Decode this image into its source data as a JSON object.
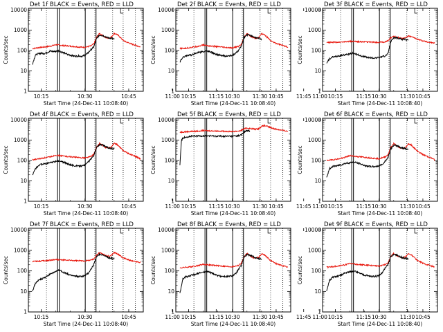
{
  "chart_data": {
    "type": "line",
    "x_tick_labels": [
      "10:15",
      "10:30",
      "10:45",
      "11:00",
      "11:15",
      "11:30",
      "11:45"
    ],
    "x_range_minutes_after_1000": [
      10.6,
      50
    ],
    "y_tick_labels": [
      "1",
      "10",
      "100",
      "1000",
      "10000"
    ],
    "y_range": [
      1,
      12000
    ],
    "y_scale": "log",
    "ylabel": "Counts/sec",
    "xlabel": "Start Time (24-Dec-11 10:08:40)",
    "dotted_vertical_lines_minutes": [
      16.8,
      33.4,
      39.5,
      43.1,
      47.3
    ],
    "solid_vertical_lines_minutes": [
      20.6,
      21.2,
      30.1,
      33.8
    ],
    "corner_marker_minutes": 42.2,
    "series_colors": {
      "events": "#000000",
      "lld": "#e8140a"
    },
    "panels": [
      {
        "title": "Det 1f BLACK = Events, RED = LLD",
        "events": {
          "x": [
            12.0,
            13,
            14,
            15,
            16,
            17,
            18,
            19,
            20,
            21,
            22,
            23,
            24,
            25,
            26,
            27,
            28,
            29,
            30,
            31,
            32,
            33,
            34,
            35,
            36,
            37,
            38,
            39,
            40
          ],
          "y": [
            22,
            60,
            70,
            75,
            72,
            80,
            95,
            90,
            92,
            100,
            85,
            75,
            65,
            60,
            55,
            53,
            55,
            52,
            60,
            75,
            110,
            150,
            400,
            580,
            560,
            480,
            420,
            410,
            360
          ]
        },
        "lld": {
          "x": [
            12,
            14,
            16,
            18,
            20,
            22,
            24,
            26,
            28,
            30,
            32,
            33,
            34,
            35,
            36,
            37,
            38,
            39,
            40,
            41,
            42,
            43,
            44,
            45,
            46,
            47,
            48,
            49
          ],
          "y": [
            125,
            140,
            150,
            165,
            195,
            180,
            170,
            160,
            150,
            145,
            170,
            210,
            460,
            700,
            560,
            440,
            410,
            450,
            700,
            630,
            460,
            330,
            270,
            240,
            210,
            190,
            170,
            150
          ]
        }
      },
      {
        "title": "Det 2f BLACK = Events, RED = LLD",
        "events": {
          "x": [
            12.0,
            13,
            14,
            15,
            16,
            17,
            18,
            19,
            20,
            21,
            22,
            23,
            24,
            25,
            26,
            27,
            28,
            29,
            30,
            31,
            32,
            33,
            34,
            35,
            36,
            37,
            38,
            39,
            40
          ],
          "y": [
            28,
            45,
            55,
            60,
            62,
            70,
            80,
            85,
            88,
            95,
            90,
            80,
            70,
            62,
            58,
            55,
            53,
            55,
            58,
            70,
            100,
            160,
            420,
            590,
            580,
            500,
            430,
            400,
            360
          ]
        },
        "lld": {
          "x": [
            12,
            14,
            16,
            18,
            20,
            22,
            24,
            26,
            28,
            30,
            32,
            33,
            34,
            35,
            36,
            37,
            38,
            39,
            40,
            41,
            42,
            43,
            44,
            45,
            46,
            47,
            48,
            49
          ],
          "y": [
            125,
            130,
            145,
            160,
            190,
            170,
            160,
            150,
            140,
            135,
            160,
            200,
            450,
            680,
            540,
            420,
            400,
            440,
            680,
            600,
            440,
            320,
            260,
            230,
            205,
            185,
            165,
            150
          ]
        }
      },
      {
        "title": "Det 3f BLACK = Events, RED = LLD",
        "events": {
          "x": [
            12.0,
            13,
            14,
            15,
            16,
            17,
            18,
            19,
            20,
            21,
            22,
            23,
            24,
            25,
            26,
            27,
            28,
            29,
            30,
            31,
            32,
            33,
            34,
            35,
            36,
            37,
            38,
            39,
            40
          ],
          "y": [
            25,
            40,
            48,
            50,
            55,
            58,
            62,
            65,
            68,
            75,
            70,
            60,
            55,
            50,
            46,
            44,
            43,
            44,
            45,
            50,
            55,
            70,
            280,
            440,
            430,
            380,
            360,
            350,
            320
          ]
        },
        "lld": {
          "x": [
            12,
            14,
            16,
            18,
            20,
            22,
            24,
            26,
            28,
            30,
            32,
            33,
            34,
            35,
            36,
            37,
            38,
            39,
            40,
            41,
            42,
            43,
            44,
            45,
            46,
            47,
            48,
            49
          ],
          "y": [
            250,
            255,
            260,
            270,
            285,
            280,
            270,
            265,
            260,
            255,
            265,
            300,
            430,
            520,
            460,
            420,
            400,
            430,
            520,
            480,
            420,
            370,
            330,
            300,
            280,
            260,
            245,
            230
          ]
        }
      },
      {
        "title": "Det 4f BLACK = Events, RED = LLD",
        "events": {
          "x": [
            12.0,
            13,
            14,
            15,
            16,
            17,
            18,
            19,
            20,
            21,
            22,
            23,
            24,
            25,
            26,
            27,
            28,
            29,
            30,
            31,
            32,
            33,
            34,
            35,
            36,
            37,
            38,
            39,
            40
          ],
          "y": [
            20,
            40,
            55,
            65,
            68,
            72,
            80,
            85,
            88,
            95,
            90,
            80,
            70,
            62,
            58,
            55,
            53,
            55,
            60,
            80,
            120,
            180,
            450,
            600,
            590,
            500,
            430,
            400,
            380
          ]
        },
        "lld": {
          "x": [
            12,
            14,
            16,
            18,
            20,
            22,
            24,
            26,
            28,
            30,
            32,
            33,
            34,
            35,
            36,
            37,
            38,
            39,
            40,
            41,
            42,
            43,
            44,
            45,
            46,
            47,
            48,
            49
          ],
          "y": [
            110,
            120,
            135,
            150,
            185,
            170,
            160,
            150,
            140,
            135,
            160,
            200,
            460,
            700,
            560,
            440,
            410,
            450,
            700,
            620,
            450,
            320,
            260,
            220,
            190,
            165,
            145,
            120
          ]
        }
      },
      {
        "title": "Det 5f BLACK = Events, RED = LLD",
        "events": {
          "x": [
            12.0,
            12.5,
            13,
            14,
            16,
            18,
            20,
            22,
            24,
            26,
            28,
            30,
            32,
            33,
            34,
            35,
            36
          ],
          "y": [
            60,
            900,
            1300,
            1450,
            1550,
            1600,
            1650,
            1630,
            1600,
            1580,
            1560,
            1580,
            1650,
            1800,
            2500,
            3000,
            2800
          ]
        },
        "lld": {
          "x": [
            12,
            14,
            16,
            18,
            20,
            22,
            24,
            26,
            28,
            30,
            32,
            33,
            34,
            35,
            36,
            37,
            38,
            39,
            40,
            41,
            42,
            43,
            44,
            45,
            46,
            47,
            48,
            49
          ],
          "y": [
            2500,
            2600,
            2700,
            2800,
            3000,
            2900,
            2850,
            2800,
            2750,
            2700,
            2800,
            3000,
            3600,
            4000,
            3800,
            3600,
            3500,
            3700,
            4800,
            5200,
            4800,
            4200,
            3800,
            3500,
            3300,
            3100,
            2900,
            2700
          ]
        }
      },
      {
        "title": "Det 6f BLACK = Events, RED = LLD",
        "events": {
          "x": [
            12.0,
            13,
            14,
            15,
            16,
            17,
            18,
            19,
            20,
            21,
            22,
            23,
            24,
            25,
            26,
            27,
            28,
            29,
            30,
            31,
            32,
            33,
            34,
            35,
            36,
            37,
            38,
            39,
            40
          ],
          "y": [
            15,
            40,
            50,
            55,
            58,
            62,
            70,
            75,
            78,
            85,
            80,
            72,
            65,
            58,
            54,
            52,
            50,
            52,
            55,
            65,
            90,
            140,
            380,
            560,
            550,
            470,
            410,
            390,
            350
          ]
        },
        "lld": {
          "x": [
            12,
            14,
            16,
            18,
            20,
            22,
            24,
            26,
            28,
            30,
            32,
            33,
            34,
            35,
            36,
            37,
            38,
            39,
            40,
            41,
            42,
            43,
            44,
            45,
            46,
            47,
            48,
            49
          ],
          "y": [
            100,
            110,
            120,
            140,
            175,
            160,
            150,
            140,
            130,
            125,
            150,
            190,
            440,
            680,
            540,
            420,
            390,
            430,
            660,
            580,
            420,
            300,
            240,
            200,
            170,
            150,
            130,
            110
          ]
        }
      },
      {
        "title": "Det 7f BLACK = Events, RED = LLD",
        "events": {
          "x": [
            12.0,
            13,
            14,
            15,
            16,
            17,
            18,
            19,
            20,
            21,
            22,
            23,
            24,
            25,
            26,
            27,
            28,
            29,
            30,
            31,
            32,
            33,
            34,
            35,
            36,
            37,
            38,
            39,
            40
          ],
          "y": [
            10,
            25,
            35,
            40,
            45,
            55,
            70,
            80,
            90,
            110,
            95,
            80,
            70,
            62,
            58,
            55,
            53,
            55,
            60,
            75,
            120,
            200,
            500,
            650,
            620,
            520,
            450,
            420,
            380
          ]
        },
        "lld": {
          "x": [
            12,
            14,
            16,
            18,
            20,
            22,
            24,
            26,
            28,
            30,
            32,
            33,
            34,
            35,
            36,
            37,
            38,
            39,
            40,
            41,
            42,
            43,
            44,
            45,
            46,
            47,
            48,
            49
          ],
          "y": [
            290,
            300,
            310,
            330,
            360,
            340,
            330,
            320,
            310,
            310,
            340,
            380,
            600,
            780,
            680,
            560,
            520,
            560,
            780,
            700,
            560,
            440,
            380,
            340,
            310,
            290,
            275,
            260
          ]
        }
      },
      {
        "title": "Det 8f BLACK = Events, RED = LLD",
        "events": {
          "x": [
            12.0,
            13,
            14,
            15,
            16,
            17,
            18,
            19,
            20,
            21,
            22,
            23,
            24,
            25,
            26,
            27,
            28,
            29,
            30,
            31,
            32,
            33,
            34,
            35,
            36,
            37,
            38,
            39,
            40
          ],
          "y": [
            8,
            40,
            52,
            55,
            60,
            65,
            75,
            82,
            85,
            95,
            88,
            78,
            68,
            60,
            56,
            54,
            52,
            54,
            58,
            70,
            110,
            180,
            460,
            620,
            600,
            500,
            430,
            400,
            370
          ]
        },
        "lld": {
          "x": [
            12,
            14,
            16,
            18,
            20,
            22,
            24,
            26,
            28,
            30,
            32,
            33,
            34,
            35,
            36,
            37,
            38,
            39,
            40,
            41,
            42,
            43,
            44,
            45,
            46,
            47,
            48,
            49
          ],
          "y": [
            140,
            150,
            160,
            180,
            210,
            195,
            185,
            175,
            165,
            160,
            185,
            230,
            480,
            700,
            560,
            450,
            420,
            460,
            680,
            600,
            450,
            330,
            270,
            230,
            200,
            180,
            165,
            150
          ]
        }
      },
      {
        "title": "Det 9f BLACK = Events, RED = LLD",
        "events": {
          "x": [
            12.0,
            13,
            14,
            15,
            16,
            17,
            18,
            19,
            20,
            21,
            22,
            23,
            24,
            25,
            26,
            27,
            28,
            29,
            30,
            31,
            32,
            33,
            34,
            35,
            36,
            37,
            38,
            39,
            40
          ],
          "y": [
            10,
            35,
            48,
            52,
            56,
            62,
            75,
            85,
            90,
            100,
            92,
            80,
            70,
            62,
            58,
            55,
            53,
            55,
            60,
            80,
            130,
            200,
            480,
            640,
            610,
            510,
            440,
            410,
            370
          ]
        },
        "lld": {
          "x": [
            12,
            14,
            16,
            18,
            20,
            22,
            24,
            26,
            28,
            30,
            32,
            33,
            34,
            35,
            36,
            37,
            38,
            39,
            40,
            41,
            42,
            43,
            44,
            45,
            46,
            47,
            48,
            49
          ],
          "y": [
            150,
            160,
            175,
            195,
            230,
            210,
            200,
            190,
            180,
            175,
            200,
            250,
            500,
            700,
            570,
            460,
            430,
            470,
            690,
            610,
            460,
            340,
            280,
            240,
            210,
            190,
            175,
            160
          ]
        }
      }
    ]
  }
}
